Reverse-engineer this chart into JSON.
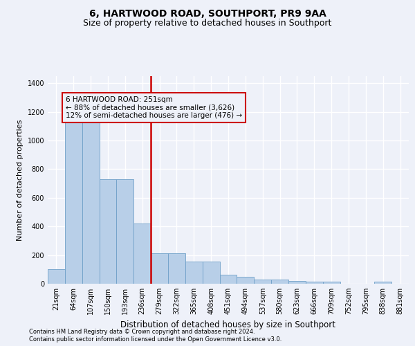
{
  "title": "6, HARTWOOD ROAD, SOUTHPORT, PR9 9AA",
  "subtitle": "Size of property relative to detached houses in Southport",
  "xlabel": "Distribution of detached houses by size in Southport",
  "ylabel": "Number of detached properties",
  "categories": [
    "21sqm",
    "64sqm",
    "107sqm",
    "150sqm",
    "193sqm",
    "236sqm",
    "279sqm",
    "322sqm",
    "365sqm",
    "408sqm",
    "451sqm",
    "494sqm",
    "537sqm",
    "580sqm",
    "623sqm",
    "666sqm",
    "709sqm",
    "752sqm",
    "795sqm",
    "838sqm",
    "881sqm"
  ],
  "values": [
    100,
    1150,
    1150,
    730,
    730,
    420,
    215,
    215,
    155,
    155,
    65,
    50,
    30,
    30,
    18,
    14,
    14,
    0,
    0,
    15,
    0
  ],
  "bar_color": "#b8cfe8",
  "bar_edge_color": "#6fa0c8",
  "vline_color": "#cc0000",
  "annotation_text": "6 HARTWOOD ROAD: 251sqm\n← 88% of detached houses are smaller (3,626)\n12% of semi-detached houses are larger (476) →",
  "ylim": [
    0,
    1450
  ],
  "yticks": [
    0,
    200,
    400,
    600,
    800,
    1000,
    1200,
    1400
  ],
  "footer_line1": "Contains HM Land Registry data © Crown copyright and database right 2024.",
  "footer_line2": "Contains public sector information licensed under the Open Government Licence v3.0.",
  "bg_color": "#eef1f9",
  "grid_color": "#ffffff",
  "title_fontsize": 10,
  "subtitle_fontsize": 9,
  "tick_fontsize": 7,
  "ylabel_fontsize": 8,
  "xlabel_fontsize": 8.5,
  "annotation_fontsize": 7.5,
  "footer_fontsize": 6
}
